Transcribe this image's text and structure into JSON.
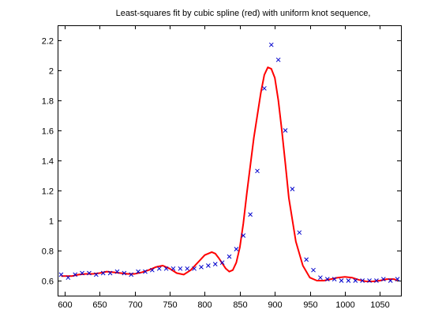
{
  "chart_data": {
    "type": "scatter",
    "title": "Least-squares fit by cubic spline (red) with uniform knot sequence,",
    "xlabel": "",
    "ylabel": "",
    "xlim": [
      590,
      1080
    ],
    "ylim": [
      0.5,
      2.3
    ],
    "xticks": [
      600,
      650,
      700,
      750,
      800,
      850,
      900,
      950,
      1000,
      1050
    ],
    "yticks": [
      0.6,
      0.8,
      1,
      1.2,
      1.4,
      1.6,
      1.8,
      2,
      2.2
    ],
    "ytick_labels": [
      "0.6",
      "0.8",
      "1",
      "1.2",
      "1.4",
      "1.6",
      "1.8",
      "2",
      "2.2"
    ],
    "grid": false,
    "series": [
      {
        "marker": "x",
        "color": "#0000cc",
        "x": [
          595,
          605,
          615,
          625,
          635,
          645,
          655,
          665,
          675,
          685,
          695,
          705,
          715,
          725,
          735,
          745,
          755,
          765,
          775,
          785,
          795,
          805,
          815,
          825,
          835,
          845,
          855,
          865,
          875,
          885,
          895,
          905,
          915,
          925,
          935,
          945,
          955,
          965,
          975,
          985,
          995,
          1005,
          1015,
          1025,
          1035,
          1045,
          1055,
          1065,
          1075
        ],
        "y": [
          0.64,
          0.62,
          0.64,
          0.65,
          0.65,
          0.64,
          0.65,
          0.65,
          0.66,
          0.65,
          0.64,
          0.66,
          0.66,
          0.67,
          0.68,
          0.68,
          0.68,
          0.68,
          0.68,
          0.68,
          0.69,
          0.7,
          0.71,
          0.72,
          0.76,
          0.81,
          0.9,
          1.04,
          1.33,
          1.88,
          2.17,
          2.07,
          1.6,
          1.21,
          0.92,
          0.74,
          0.67,
          0.62,
          0.61,
          0.61,
          0.6,
          0.6,
          0.6,
          0.6,
          0.6,
          0.6,
          0.61,
          0.6,
          0.61
        ]
      },
      {
        "type": "line",
        "color": "#ff0000",
        "x": [
          595,
          600,
          610,
          620,
          630,
          640,
          650,
          660,
          670,
          680,
          690,
          700,
          710,
          720,
          730,
          740,
          750,
          760,
          770,
          780,
          790,
          800,
          810,
          815,
          820,
          830,
          835,
          840,
          845,
          850,
          855,
          860,
          870,
          880,
          885,
          890,
          895,
          900,
          905,
          910,
          915,
          920,
          930,
          940,
          950,
          960,
          970,
          980,
          990,
          1000,
          1010,
          1020,
          1030,
          1040,
          1050,
          1060,
          1070,
          1075
        ],
        "y": [
          0.63,
          0.63,
          0.63,
          0.64,
          0.645,
          0.645,
          0.65,
          0.66,
          0.655,
          0.65,
          0.645,
          0.645,
          0.655,
          0.67,
          0.69,
          0.7,
          0.68,
          0.65,
          0.64,
          0.67,
          0.72,
          0.77,
          0.79,
          0.78,
          0.75,
          0.68,
          0.66,
          0.67,
          0.72,
          0.82,
          0.98,
          1.18,
          1.55,
          1.85,
          1.97,
          2.02,
          2.01,
          1.95,
          1.8,
          1.6,
          1.38,
          1.15,
          0.86,
          0.7,
          0.62,
          0.6,
          0.6,
          0.61,
          0.62,
          0.625,
          0.62,
          0.605,
          0.595,
          0.595,
          0.6,
          0.61,
          0.61,
          0.6
        ]
      }
    ]
  }
}
